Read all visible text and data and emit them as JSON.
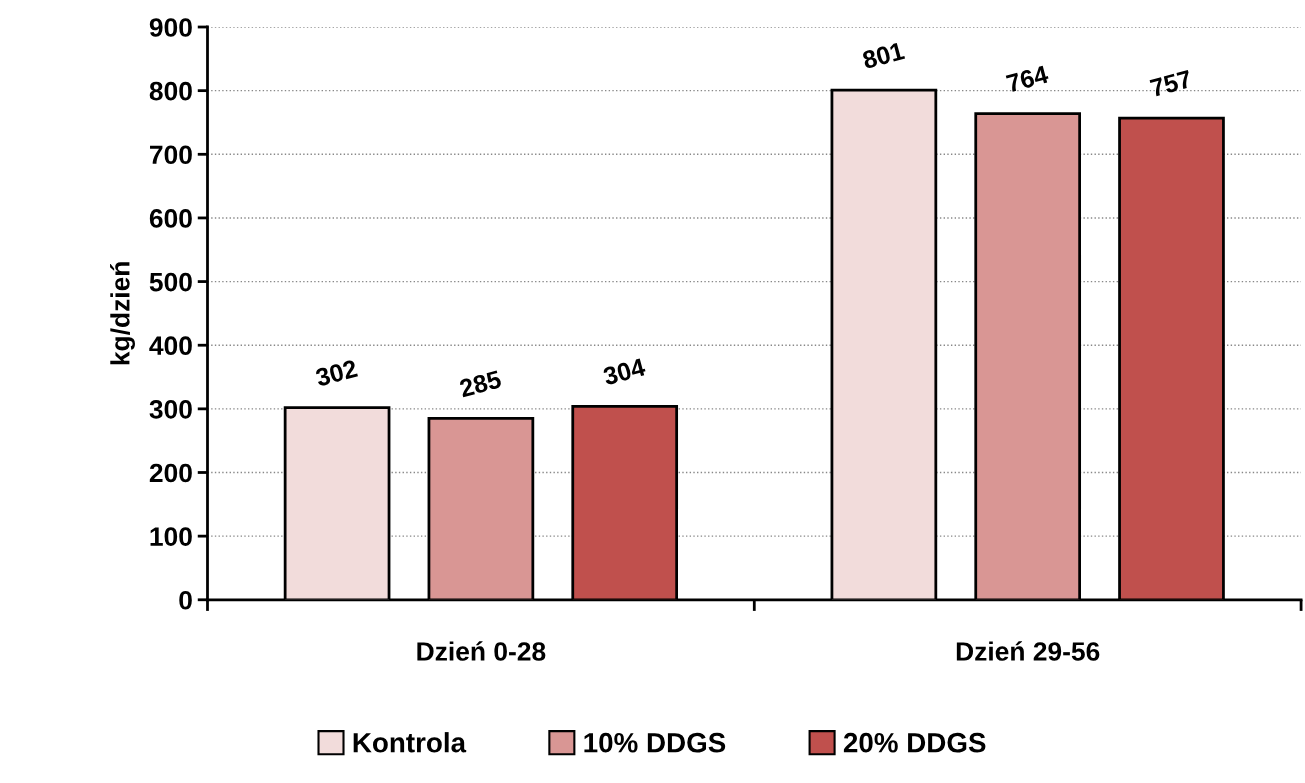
{
  "chart_data": {
    "type": "bar",
    "ylabel": "kg/dzień",
    "categories": [
      "Dzień 0-28",
      "Dzień 29-56"
    ],
    "series": [
      {
        "name": "Kontrola",
        "color": "#f2dcdb",
        "values": [
          302,
          801
        ]
      },
      {
        "name": "10% DDGS",
        "color": "#d99694",
        "values": [
          285,
          764
        ]
      },
      {
        "name": "20% DDGS",
        "color": "#c0504d",
        "values": [
          304,
          757
        ]
      }
    ],
    "ylim": [
      0,
      900
    ],
    "yticks": [
      0,
      100,
      200,
      300,
      400,
      500,
      600,
      700,
      800,
      900
    ],
    "grid": "y",
    "legend": "bottom",
    "data_labels": true
  }
}
